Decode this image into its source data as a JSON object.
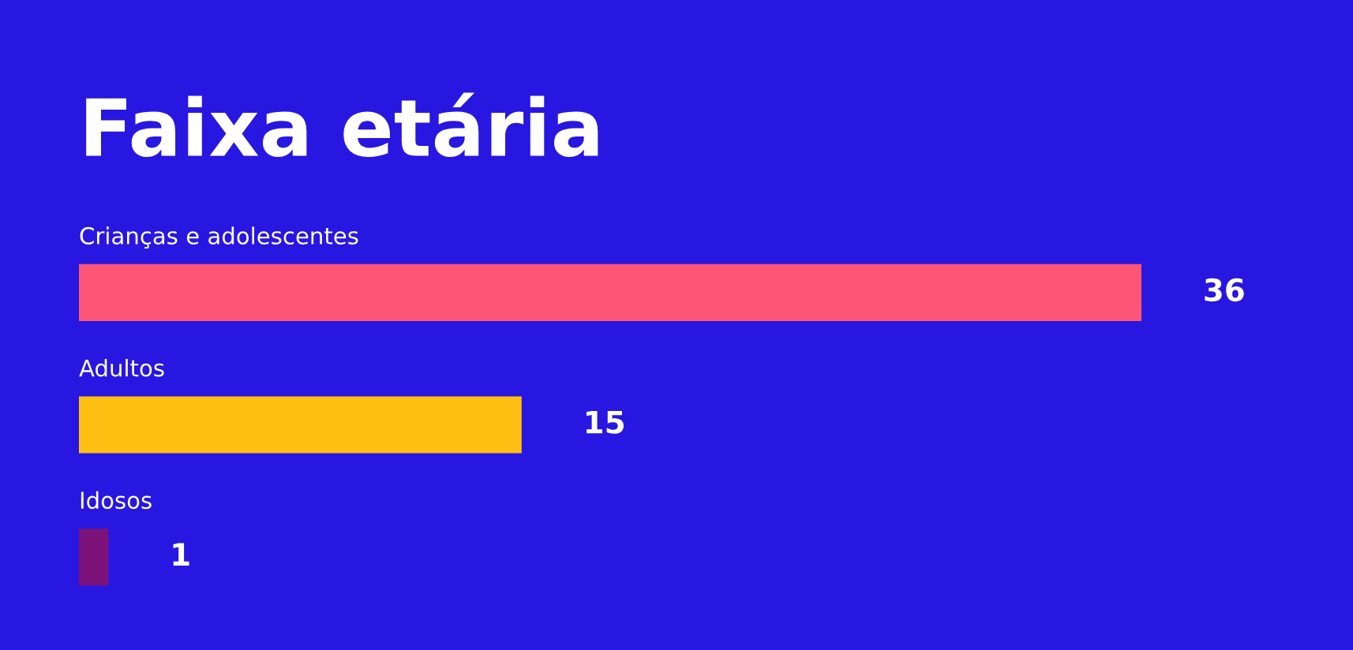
{
  "chart_data": {
    "type": "bar",
    "orientation": "horizontal",
    "title": "Faixa etária",
    "categories": [
      "Crianças e adolescentes",
      "Adultos",
      "Idosos"
    ],
    "values": [
      36,
      15,
      1
    ],
    "colors": [
      "#ff5577",
      "#ffbe12",
      "#7d127b"
    ],
    "data_labels": true
  }
}
